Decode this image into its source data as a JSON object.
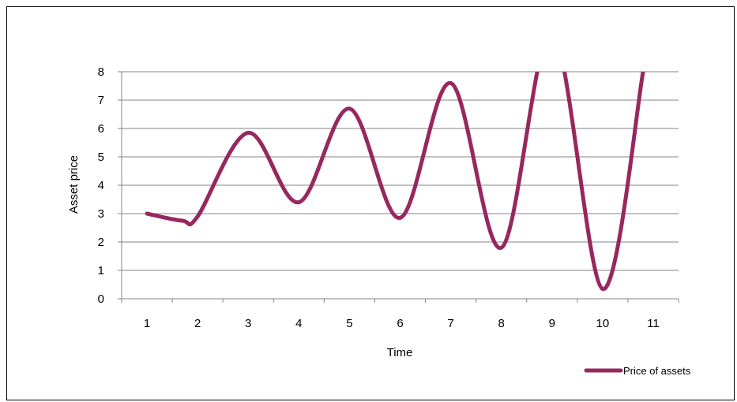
{
  "chart_data": {
    "type": "line",
    "title": "",
    "xlabel": "Time",
    "ylabel": "Asset price",
    "categories": [
      "1",
      "2",
      "3",
      "4",
      "5",
      "6",
      "7",
      "8",
      "9",
      "10",
      "11"
    ],
    "xlim": [
      0.5,
      11.5
    ],
    "ylim": [
      0,
      8
    ],
    "yticks": [
      "0",
      "1",
      "2",
      "3",
      "4",
      "5",
      "6",
      "7",
      "8"
    ],
    "grid": "horizontal",
    "legend_position": "bottom-right",
    "series": [
      {
        "name": "Price of assets",
        "color": "#97285f",
        "values": [
          [
            1.0,
            3.0
          ],
          [
            1.7,
            2.75
          ],
          [
            2.0,
            2.9
          ],
          [
            3.0,
            5.85
          ],
          [
            4.0,
            3.4
          ],
          [
            5.0,
            6.7
          ],
          [
            6.0,
            2.85
          ],
          [
            7.0,
            7.6
          ],
          [
            8.0,
            1.8
          ],
          [
            9.0,
            9.4
          ],
          [
            10.0,
            0.35
          ],
          [
            10.8,
            8.0
          ]
        ]
      }
    ]
  }
}
